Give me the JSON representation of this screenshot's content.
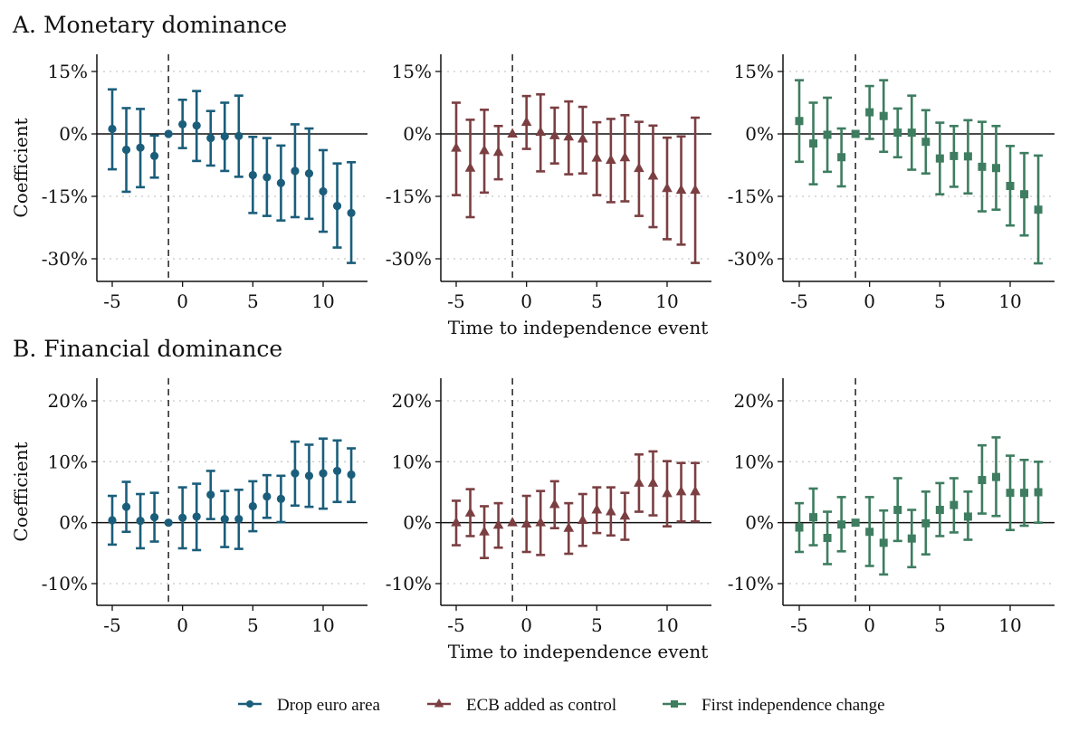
{
  "chart_data": {
    "type": "scatter",
    "subtype": "event-study coefficient plot with 95% CI error bars",
    "x": [
      -5,
      -4,
      -3,
      -2,
      -1,
      0,
      1,
      2,
      3,
      4,
      5,
      6,
      7,
      8,
      9,
      10,
      11,
      12
    ],
    "xlabel": "Time to independence event",
    "ylabel": "Coefficient",
    "xticks": [
      -5,
      0,
      5,
      10
    ],
    "xtick_labels": [
      "-5",
      "0",
      "5",
      "10"
    ],
    "reference_x": -1,
    "reference_y": 0,
    "legend": {
      "placement": "bottom-center",
      "entries": [
        {
          "name": "Drop euro area",
          "marker": "circle",
          "color": "#1b5e7b"
        },
        {
          "name": "ECB added as control",
          "marker": "triangle",
          "color": "#7b3f42"
        },
        {
          "name": "First independence change",
          "marker": "square",
          "color": "#3e7d60"
        }
      ]
    },
    "rows": [
      {
        "title": "A. Monetary dominance",
        "ylim": [
          -35,
          19
        ],
        "yticks": [
          15,
          0,
          -15,
          -30
        ],
        "ytick_labels": [
          "15%",
          "0%",
          "-15%",
          "-30%"
        ],
        "panels": [
          {
            "series": "Drop euro area",
            "y": [
              1.2,
              -3.8,
              -3.3,
              -5.3,
              0,
              2.3,
              2.0,
              -1.0,
              -0.6,
              -0.5,
              -9.9,
              -10.4,
              -11.8,
              -8.9,
              -9.5,
              -13.8,
              -17.3,
              -19.0
            ],
            "ci_hi": [
              10.7,
              6.2,
              6.0,
              -0.4,
              0,
              8.2,
              10.3,
              5.5,
              7.5,
              9.2,
              -0.7,
              -1.0,
              -2.8,
              2.3,
              1.3,
              -3.9,
              -7.1,
              -6.8
            ],
            "ci_lo": [
              -8.5,
              -13.9,
              -12.8,
              -10.5,
              0,
              -3.4,
              -6.5,
              -7.6,
              -8.9,
              -10.3,
              -19.0,
              -19.7,
              -20.8,
              -20.0,
              -20.4,
              -23.5,
              -27.3,
              -31.0
            ]
          },
          {
            "series": "ECB added as control",
            "y": [
              -3.4,
              -8.2,
              -4.0,
              -4.4,
              0,
              2.8,
              0.4,
              -0.4,
              -0.7,
              -1.2,
              -5.8,
              -6.3,
              -5.7,
              -8.3,
              -10.1,
              -13.1,
              -13.5,
              -13.5
            ],
            "ci_hi": [
              7.5,
              3.4,
              5.8,
              1.9,
              0,
              9.1,
              9.5,
              6.3,
              7.8,
              6.5,
              2.8,
              3.6,
              4.5,
              2.9,
              2.0,
              -0.9,
              -0.6,
              3.9
            ],
            "ci_lo": [
              -14.7,
              -20.0,
              -14.1,
              -10.9,
              0,
              -3.6,
              -9.0,
              -7.1,
              -9.7,
              -9.5,
              -14.7,
              -16.4,
              -16.2,
              -19.7,
              -22.4,
              -25.3,
              -26.6,
              -31.0
            ]
          },
          {
            "series": "First independence change",
            "y": [
              3.1,
              -2.3,
              -0.2,
              -5.6,
              0,
              5.2,
              4.3,
              0.3,
              0.3,
              -1.9,
              -5.9,
              -5.3,
              -5.4,
              -7.9,
              -8.2,
              -12.5,
              -14.5,
              -18.2
            ],
            "ci_hi": [
              12.9,
              7.5,
              8.7,
              1.3,
              0,
              11.5,
              12.9,
              6.1,
              9.2,
              5.7,
              2.7,
              1.9,
              3.3,
              2.9,
              1.9,
              -2.9,
              -4.6,
              -5.2
            ],
            "ci_lo": [
              -6.7,
              -12.1,
              -9.1,
              -12.6,
              0,
              -1.2,
              -4.3,
              -5.6,
              -8.6,
              -9.5,
              -14.5,
              -12.7,
              -14.3,
              -18.6,
              -18.2,
              -22.0,
              -24.4,
              -31.1
            ]
          }
        ]
      },
      {
        "title": "B. Financial dominance",
        "ylim": [
          -13.7,
          23.7
        ],
        "yticks": [
          20,
          10,
          0,
          -10
        ],
        "ytick_labels": [
          "20%",
          "10%",
          "0%",
          "-10%"
        ],
        "panels": [
          {
            "series": "Drop euro area",
            "y": [
              0.4,
              2.6,
              0.3,
              0.9,
              0,
              0.8,
              1.0,
              4.6,
              0.6,
              0.6,
              2.7,
              4.3,
              3.9,
              8.1,
              7.7,
              8.1,
              8.5,
              7.9
            ],
            "ci_hi": [
              4.4,
              6.7,
              4.7,
              4.9,
              0,
              5.8,
              6.4,
              8.5,
              5.2,
              5.4,
              6.8,
              7.8,
              7.7,
              13.3,
              12.8,
              13.8,
              13.5,
              12.2
            ],
            "ci_lo": [
              -3.6,
              -1.5,
              -4.2,
              -3.1,
              0,
              -4.2,
              -4.5,
              0.6,
              -4.0,
              -4.3,
              -1.4,
              0.8,
              0.1,
              2.8,
              2.6,
              2.3,
              3.4,
              3.4
            ]
          },
          {
            "series": "ECB added as control",
            "y": [
              0.0,
              1.6,
              -1.5,
              -0.4,
              0,
              -0.2,
              0.0,
              3.0,
              -0.9,
              0.4,
              2.1,
              1.8,
              1.1,
              6.5,
              6.5,
              4.8,
              5.1,
              5.1
            ],
            "ci_hi": [
              3.6,
              5.5,
              2.7,
              3.2,
              0,
              4.4,
              5.2,
              6.8,
              3.2,
              4.7,
              5.8,
              5.8,
              4.9,
              11.2,
              11.7,
              10.1,
              9.8,
              9.8
            ],
            "ci_lo": [
              -3.7,
              -2.2,
              -5.8,
              -4.1,
              0,
              -4.8,
              -5.3,
              -0.9,
              -5.1,
              -3.8,
              -1.7,
              -2.1,
              -2.8,
              1.8,
              1.2,
              -0.6,
              0.2,
              0.2
            ]
          },
          {
            "series": "First independence change",
            "y": [
              -0.8,
              0.9,
              -2.5,
              -0.3,
              0,
              -1.5,
              -3.3,
              2.1,
              -2.6,
              -0.1,
              2.1,
              2.9,
              1.0,
              7.0,
              7.5,
              4.9,
              4.9,
              5.0
            ],
            "ci_hi": [
              3.2,
              5.6,
              1.8,
              4.2,
              0,
              4.2,
              2.0,
              7.3,
              2.1,
              5.1,
              6.5,
              7.3,
              5.1,
              12.7,
              14.0,
              11.0,
              10.3,
              10.0
            ],
            "ci_lo": [
              -4.8,
              -3.7,
              -6.8,
              -4.7,
              0,
              -7.1,
              -8.5,
              -3.0,
              -7.3,
              -5.2,
              -2.2,
              -1.6,
              -2.8,
              1.5,
              1.1,
              -1.2,
              -0.5,
              0.0
            ]
          }
        ]
      }
    ]
  }
}
